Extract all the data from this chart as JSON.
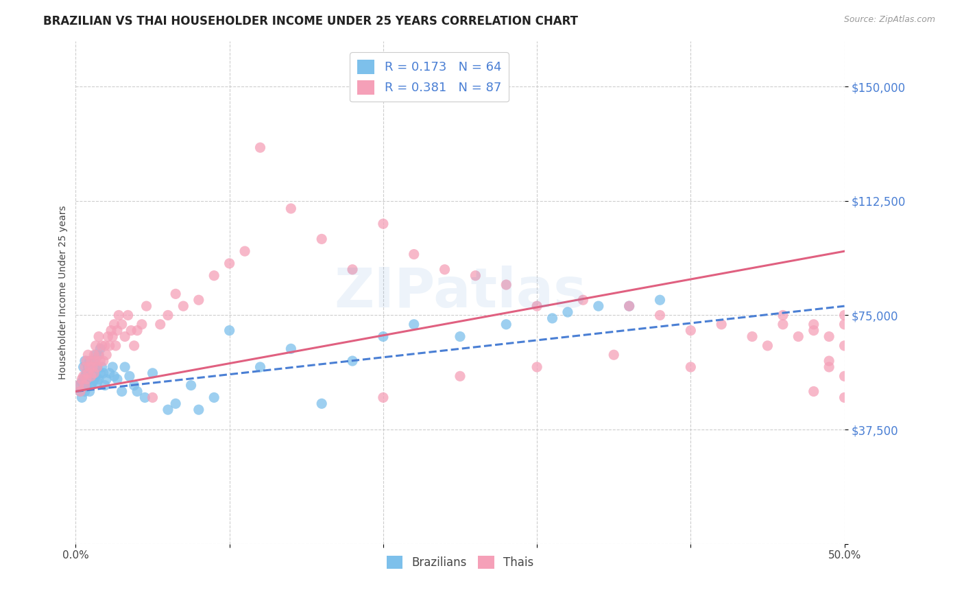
{
  "title": "BRAZILIAN VS THAI HOUSEHOLDER INCOME UNDER 25 YEARS CORRELATION CHART",
  "source": "Source: ZipAtlas.com",
  "ylabel": "Householder Income Under 25 years",
  "xlim": [
    0.0,
    0.5
  ],
  "ylim": [
    0,
    165000
  ],
  "yticks": [
    0,
    37500,
    75000,
    112500,
    150000
  ],
  "ytick_labels": [
    "",
    "$37,500",
    "$75,000",
    "$112,500",
    "$150,000"
  ],
  "xticks": [
    0.0,
    0.1,
    0.2,
    0.3,
    0.4,
    0.5
  ],
  "xtick_labels": [
    "0.0%",
    "",
    "",
    "",
    "",
    "50.0%"
  ],
  "background_color": "#ffffff",
  "grid_color": "#c8c8c8",
  "watermark": "ZIPatlas",
  "R_brazil": 0.173,
  "N_brazil": 64,
  "R_thai": 0.381,
  "N_thai": 87,
  "brazil_color": "#7dc0eb",
  "thai_color": "#f5a0b8",
  "brazil_line_color": "#4a7fd4",
  "thai_line_color": "#e06080",
  "brazil_line_style": "--",
  "thai_line_style": "-",
  "title_fontsize": 12,
  "tick_color_y": "#4a7fd4",
  "brazil_trendline_y0": 50000,
  "brazil_trendline_y1": 78000,
  "thai_trendline_y0": 50000,
  "thai_trendline_y1": 96000,
  "brazil_scatter_x": [
    0.002,
    0.003,
    0.004,
    0.004,
    0.005,
    0.005,
    0.006,
    0.006,
    0.006,
    0.007,
    0.007,
    0.008,
    0.008,
    0.009,
    0.009,
    0.009,
    0.01,
    0.01,
    0.011,
    0.011,
    0.012,
    0.012,
    0.013,
    0.013,
    0.014,
    0.014,
    0.015,
    0.015,
    0.016,
    0.016,
    0.017,
    0.018,
    0.019,
    0.02,
    0.022,
    0.024,
    0.025,
    0.027,
    0.03,
    0.032,
    0.035,
    0.038,
    0.04,
    0.045,
    0.05,
    0.06,
    0.065,
    0.075,
    0.08,
    0.09,
    0.1,
    0.12,
    0.14,
    0.16,
    0.18,
    0.2,
    0.22,
    0.25,
    0.28,
    0.31,
    0.32,
    0.34,
    0.36,
    0.38
  ],
  "brazil_scatter_y": [
    52000,
    50000,
    53000,
    48000,
    54000,
    58000,
    50000,
    55000,
    60000,
    52000,
    56000,
    54000,
    58000,
    50000,
    55000,
    60000,
    52000,
    57000,
    53000,
    58000,
    54000,
    60000,
    55000,
    62000,
    53000,
    58000,
    54000,
    62000,
    56000,
    64000,
    58000,
    56000,
    52000,
    54000,
    56000,
    58000,
    55000,
    54000,
    50000,
    58000,
    55000,
    52000,
    50000,
    48000,
    56000,
    44000,
    46000,
    52000,
    44000,
    48000,
    70000,
    58000,
    64000,
    46000,
    60000,
    68000,
    72000,
    68000,
    72000,
    74000,
    76000,
    78000,
    78000,
    80000
  ],
  "thai_scatter_x": [
    0.002,
    0.003,
    0.004,
    0.005,
    0.006,
    0.006,
    0.007,
    0.007,
    0.008,
    0.008,
    0.009,
    0.01,
    0.01,
    0.011,
    0.012,
    0.012,
    0.013,
    0.013,
    0.014,
    0.015,
    0.015,
    0.016,
    0.017,
    0.018,
    0.019,
    0.02,
    0.021,
    0.022,
    0.023,
    0.024,
    0.025,
    0.026,
    0.027,
    0.028,
    0.03,
    0.032,
    0.034,
    0.036,
    0.038,
    0.04,
    0.043,
    0.046,
    0.05,
    0.055,
    0.06,
    0.065,
    0.07,
    0.08,
    0.09,
    0.1,
    0.11,
    0.12,
    0.14,
    0.16,
    0.18,
    0.2,
    0.22,
    0.24,
    0.26,
    0.28,
    0.3,
    0.33,
    0.36,
    0.38,
    0.4,
    0.42,
    0.44,
    0.46,
    0.48,
    0.2,
    0.25,
    0.3,
    0.35,
    0.4,
    0.45,
    0.48,
    0.49,
    0.5,
    0.46,
    0.47,
    0.5,
    0.49,
    0.5,
    0.48,
    0.5,
    0.49,
    0.5
  ],
  "thai_scatter_y": [
    52000,
    50000,
    54000,
    55000,
    52000,
    58000,
    54000,
    60000,
    56000,
    62000,
    58000,
    55000,
    60000,
    58000,
    56000,
    62000,
    60000,
    65000,
    58000,
    62000,
    68000,
    60000,
    65000,
    60000,
    65000,
    62000,
    68000,
    65000,
    70000,
    68000,
    72000,
    65000,
    70000,
    75000,
    72000,
    68000,
    75000,
    70000,
    65000,
    70000,
    72000,
    78000,
    48000,
    72000,
    75000,
    82000,
    78000,
    80000,
    88000,
    92000,
    96000,
    130000,
    110000,
    100000,
    90000,
    105000,
    95000,
    90000,
    88000,
    85000,
    78000,
    80000,
    78000,
    75000,
    70000,
    72000,
    68000,
    75000,
    72000,
    48000,
    55000,
    58000,
    62000,
    58000,
    65000,
    70000,
    68000,
    75000,
    72000,
    68000,
    65000,
    60000,
    55000,
    50000,
    48000,
    58000,
    72000
  ]
}
